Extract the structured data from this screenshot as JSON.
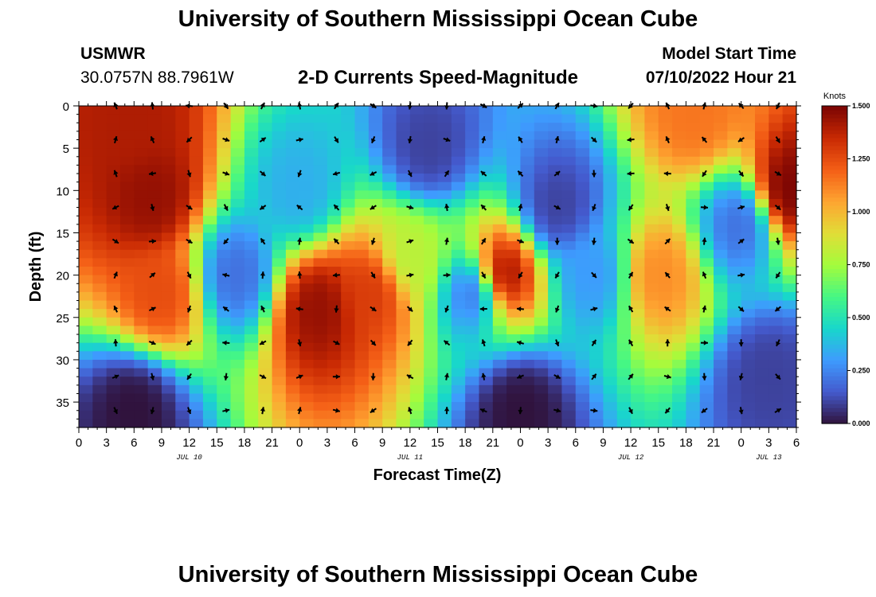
{
  "header": {
    "title": "University of Southern Mississippi Ocean Cube",
    "station_name": "USMWR",
    "station_coords": "30.0757N  88.7961W",
    "subtitle": "2-D Currents Speed-Magnitude",
    "model_label": "Model Start Time",
    "model_time": "07/10/2022 Hour 21"
  },
  "footer": {
    "title": "University of Southern Mississippi Ocean Cube"
  },
  "chart_data": {
    "type": "heatmap",
    "title": "2-D Currents Speed-Magnitude",
    "xlabel": "Forecast Time(Z)",
    "ylabel": "Depth (ft)",
    "x_ticks": [
      "0",
      "3",
      "6",
      "9",
      "12",
      "15",
      "18",
      "21",
      "0",
      "3",
      "6",
      "9",
      "12",
      "15",
      "18",
      "21",
      "0",
      "3",
      "6",
      "9",
      "12",
      "15",
      "18",
      "21",
      "0",
      "3",
      "6"
    ],
    "x_range_hours": [
      0,
      78
    ],
    "date_labels": [
      {
        "hour": 12,
        "label": "JUL 10"
      },
      {
        "hour": 36,
        "label": "JUL 11"
      },
      {
        "hour": 60,
        "label": "JUL 12"
      },
      {
        "hour": 75,
        "label": "JUL 13"
      }
    ],
    "y_ticks": [
      0,
      5,
      10,
      15,
      20,
      25,
      30,
      35
    ],
    "ylim": [
      0,
      38
    ],
    "colorbar": {
      "label": "Knots",
      "range": [
        0,
        1.5
      ],
      "ticks": [
        "0.000",
        "0.250",
        "0.500",
        "0.750",
        "1.000",
        "1.250",
        "1.500"
      ]
    },
    "speed_features_knots": [
      {
        "hour": 8,
        "depth": 11,
        "speed": 1.45
      },
      {
        "hour": 6,
        "depth": 2,
        "speed": 1.4
      },
      {
        "hour": 9,
        "depth": 22,
        "speed": 1.25
      },
      {
        "hour": 6,
        "depth": 36,
        "speed": 0.0
      },
      {
        "hour": 17,
        "depth": 20,
        "speed": 0.2
      },
      {
        "hour": 24,
        "depth": 10,
        "speed": 0.35
      },
      {
        "hour": 26,
        "depth": 24,
        "speed": 1.45
      },
      {
        "hour": 32,
        "depth": 22,
        "speed": 1.3
      },
      {
        "hour": 36,
        "depth": 18,
        "speed": 0.8
      },
      {
        "hour": 38,
        "depth": 5,
        "speed": 0.1
      },
      {
        "hour": 43,
        "depth": 22,
        "speed": 0.2
      },
      {
        "hour": 46,
        "depth": 20,
        "speed": 1.45
      },
      {
        "hour": 48,
        "depth": 36,
        "speed": 0.0
      },
      {
        "hour": 52,
        "depth": 12,
        "speed": 0.1
      },
      {
        "hour": 56,
        "depth": 20,
        "speed": 0.3
      },
      {
        "hour": 63,
        "depth": 20,
        "speed": 1.1
      },
      {
        "hour": 67,
        "depth": 1,
        "speed": 1.15
      },
      {
        "hour": 72,
        "depth": 14,
        "speed": 0.2
      },
      {
        "hour": 77,
        "depth": 10,
        "speed": 1.5
      },
      {
        "hour": 75,
        "depth": 32,
        "speed": 0.1
      }
    ],
    "vectors_note": "Current direction arrows sampled every 4 hours at depths 0,4,8,12,16,20,24,28,32,36 ft"
  }
}
